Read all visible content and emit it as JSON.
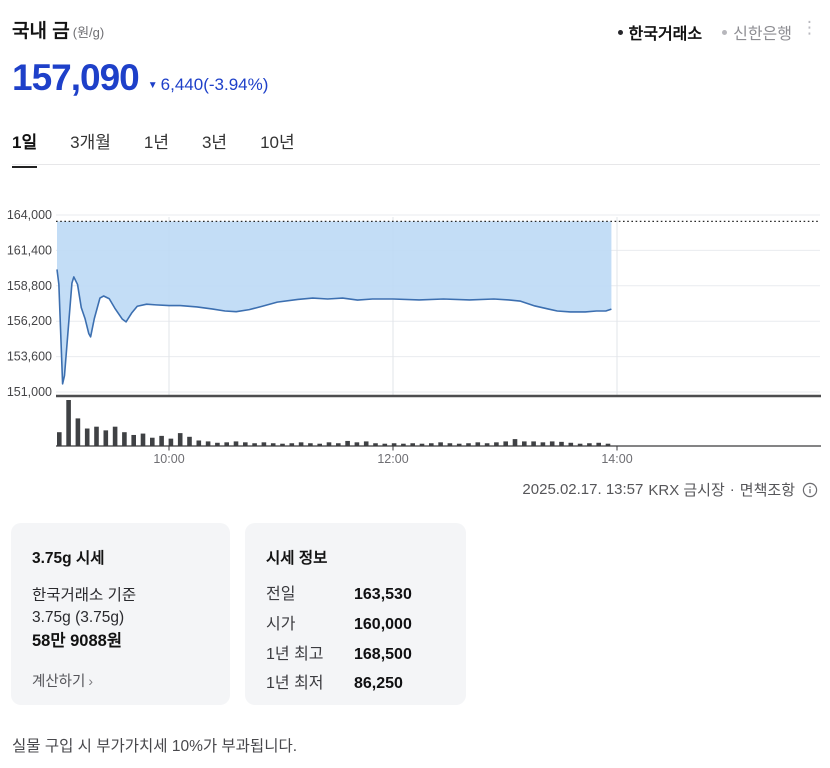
{
  "header": {
    "title": "국내 금",
    "unit": "(원/g)",
    "legend": [
      {
        "label": "한국거래소",
        "active": true
      },
      {
        "label": "신한은행",
        "active": false
      }
    ],
    "menu_icon": "vertical-dots"
  },
  "price": {
    "current": "157,090",
    "direction": "down",
    "down_arrow": "▼",
    "change": "6,440",
    "change_pct": "(-3.94%)",
    "down_color": "#1e40c9"
  },
  "tabs": [
    {
      "label": "1일",
      "active": true
    },
    {
      "label": "3개월",
      "active": false
    },
    {
      "label": "1년",
      "active": false
    },
    {
      "label": "3년",
      "active": false
    },
    {
      "label": "10년",
      "active": false
    }
  ],
  "chart_data": {
    "type": "area",
    "title": "국내 금 1일 가격 차트",
    "ylim": [
      151000,
      164000
    ],
    "y_ticks": [
      164000,
      161400,
      158800,
      156200,
      153600,
      151000
    ],
    "y_tick_labels": [
      "164,000",
      "161,400",
      "158,800",
      "156,200",
      "153,600",
      "151,000"
    ],
    "x_ticks": [
      "10:00",
      "12:00",
      "14:00"
    ],
    "prev_close": 163530,
    "open": 160000,
    "last_price": 157090,
    "last_time": "13:57",
    "grid": true,
    "price_series": [
      [
        "09:00",
        160000
      ],
      [
        "09:01",
        158900
      ],
      [
        "09:03",
        151600
      ],
      [
        "09:04",
        152200
      ],
      [
        "09:06",
        155600
      ],
      [
        "09:08",
        159000
      ],
      [
        "09:09",
        159450
      ],
      [
        "09:11",
        158900
      ],
      [
        "09:13",
        157200
      ],
      [
        "09:15",
        156400
      ],
      [
        "09:17",
        155300
      ],
      [
        "09:18",
        155050
      ],
      [
        "09:20",
        156400
      ],
      [
        "09:23",
        157900
      ],
      [
        "09:25",
        158050
      ],
      [
        "09:28",
        157850
      ],
      [
        "09:31",
        157150
      ],
      [
        "09:35",
        156350
      ],
      [
        "09:37",
        156150
      ],
      [
        "09:40",
        156800
      ],
      [
        "09:43",
        157300
      ],
      [
        "09:48",
        157450
      ],
      [
        "09:53",
        157400
      ],
      [
        "10:00",
        157350
      ],
      [
        "10:06",
        157350
      ],
      [
        "10:15",
        157250
      ],
      [
        "10:23",
        157100
      ],
      [
        "10:30",
        156950
      ],
      [
        "10:36",
        156900
      ],
      [
        "10:43",
        157050
      ],
      [
        "10:50",
        157300
      ],
      [
        "10:58",
        157600
      ],
      [
        "11:09",
        157800
      ],
      [
        "11:17",
        157900
      ],
      [
        "11:25",
        157830
      ],
      [
        "11:33",
        157900
      ],
      [
        "11:41",
        157750
      ],
      [
        "11:49",
        157830
      ],
      [
        "12:00",
        157830
      ],
      [
        "12:14",
        157760
      ],
      [
        "12:27",
        157830
      ],
      [
        "12:41",
        157760
      ],
      [
        "12:54",
        157830
      ],
      [
        "13:02",
        157760
      ],
      [
        "13:08",
        157680
      ],
      [
        "13:16",
        157320
      ],
      [
        "13:23",
        157100
      ],
      [
        "13:28",
        156950
      ],
      [
        "13:35",
        156880
      ],
      [
        "13:43",
        156880
      ],
      [
        "13:49",
        156950
      ],
      [
        "13:54",
        156950
      ],
      [
        "13:57",
        157090
      ]
    ],
    "volume_relative": [
      0.3,
      1.0,
      0.6,
      0.38,
      0.42,
      0.34,
      0.42,
      0.3,
      0.24,
      0.27,
      0.18,
      0.22,
      0.16,
      0.28,
      0.2,
      0.12,
      0.1,
      0.07,
      0.08,
      0.1,
      0.08,
      0.06,
      0.08,
      0.06,
      0.05,
      0.06,
      0.08,
      0.06,
      0.05,
      0.08,
      0.06,
      0.11,
      0.08,
      0.1,
      0.06,
      0.05,
      0.06,
      0.05,
      0.06,
      0.05,
      0.06,
      0.08,
      0.06,
      0.05,
      0.06,
      0.08,
      0.06,
      0.08,
      0.1,
      0.15,
      0.1,
      0.1,
      0.08,
      0.1,
      0.09,
      0.07,
      0.05,
      0.06,
      0.07,
      0.05
    ],
    "colors": {
      "area_fill": "#bcd9f5",
      "line": "#3c6fb0",
      "prev_close_line": "#2a2a2a",
      "volume_bar": "#3f4144",
      "axis": "#4d4d4f",
      "grid": "#e9ebef",
      "y_label": "#454548",
      "x_label": "#6e6e73"
    },
    "legend_position": "top-right"
  },
  "meta": {
    "timestamp": "2025.02.17. 13:57",
    "source": "KRX 금시장",
    "separator": "·",
    "disclaimer": "면책조항",
    "info_icon": "info-circle-icon"
  },
  "card_375": {
    "title": "3.75g 시세",
    "line1": "한국거래소 기준",
    "line2": "3.75g (3.75g)",
    "price": "58만 9088원",
    "link": "계산하기",
    "chevron": "›"
  },
  "card_info": {
    "title": "시세 정보",
    "rows": [
      [
        "전일",
        "163,530"
      ],
      [
        "시가",
        "160,000"
      ],
      [
        "1년 최고",
        "168,500"
      ],
      [
        "1년 최저",
        "86,250"
      ]
    ]
  },
  "footer": {
    "notice": "실물 구입 시 부가가치세 10%가 부과됩니다."
  }
}
